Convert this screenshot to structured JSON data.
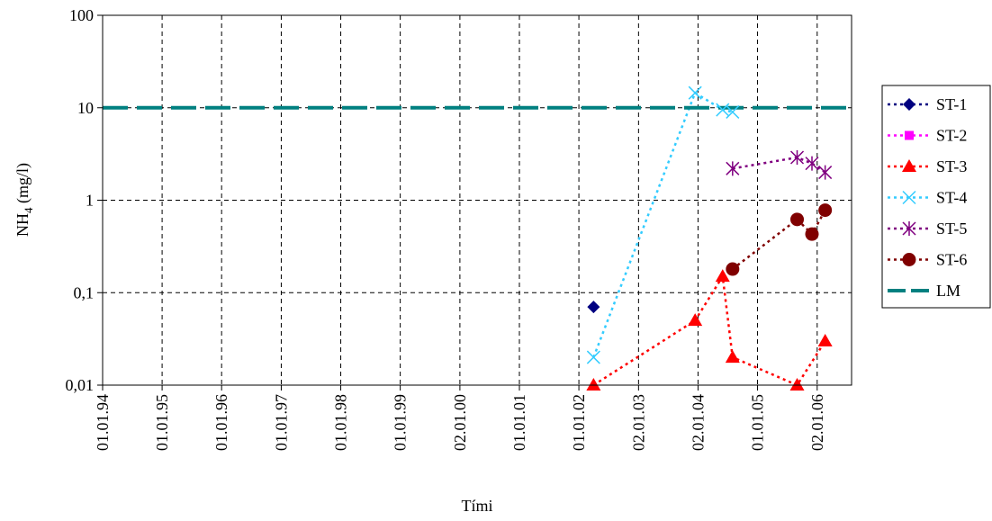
{
  "chart_data": {
    "type": "scatter",
    "y_scale": "log",
    "ylim": [
      0.01,
      100
    ],
    "grid": true,
    "legend_position": "right",
    "xlabel": "Tími",
    "ylabel_main": "NH",
    "ylabel_sub": "4",
    "ylabel_rest": " (mg/l)",
    "y_ticks": [
      {
        "value": 100,
        "label": "100"
      },
      {
        "value": 10,
        "label": "10"
      },
      {
        "value": 1,
        "label": "1"
      },
      {
        "value": 0.1,
        "label": "0,1"
      },
      {
        "value": 0.01,
        "label": "0,01"
      }
    ],
    "x_range": [
      "1994-01-01",
      "2006-08-01"
    ],
    "x_ticks": [
      {
        "date": "1994-01-01",
        "label": "01.01.94"
      },
      {
        "date": "1995-01-01",
        "label": "01.01.95"
      },
      {
        "date": "1996-01-01",
        "label": "01.01.96"
      },
      {
        "date": "1997-01-01",
        "label": "01.01.97"
      },
      {
        "date": "1998-01-01",
        "label": "01.01.98"
      },
      {
        "date": "1999-01-01",
        "label": "01.01.99"
      },
      {
        "date": "2000-01-02",
        "label": "02.01.00"
      },
      {
        "date": "2001-01-01",
        "label": "01.01.01"
      },
      {
        "date": "2002-01-01",
        "label": "01.01.02"
      },
      {
        "date": "2003-01-02",
        "label": "02.01.03"
      },
      {
        "date": "2004-01-02",
        "label": "02.01.04"
      },
      {
        "date": "2005-01-01",
        "label": "01.01.05"
      },
      {
        "date": "2006-01-02",
        "label": "02.01.06"
      }
    ],
    "series": [
      {
        "name": "ST-1",
        "color": "#000080",
        "marker": "diamond",
        "points": [
          {
            "x": "2002-04-01",
            "y": 0.07
          }
        ]
      },
      {
        "name": "ST-2",
        "color": "#ff00ff",
        "marker": "square",
        "points": []
      },
      {
        "name": "ST-3",
        "color": "#ff0000",
        "marker": "triangle",
        "points": [
          {
            "x": "2002-04-01",
            "y": 0.01
          },
          {
            "x": "2003-12-15",
            "y": 0.05
          },
          {
            "x": "2004-06-01",
            "y": 0.15
          },
          {
            "x": "2004-08-01",
            "y": 0.02
          },
          {
            "x": "2005-09-01",
            "y": 0.01
          },
          {
            "x": "2006-02-20",
            "y": 0.03
          }
        ]
      },
      {
        "name": "ST-4",
        "color": "#33ccff",
        "marker": "x",
        "points": [
          {
            "x": "2002-04-01",
            "y": 0.02
          },
          {
            "x": "2003-12-15",
            "y": 14.5
          },
          {
            "x": "2004-06-01",
            "y": 9.5
          },
          {
            "x": "2004-08-01",
            "y": 9
          }
        ]
      },
      {
        "name": "ST-5",
        "color": "#800080",
        "marker": "star",
        "points": [
          {
            "x": "2004-08-01",
            "y": 2.2
          },
          {
            "x": "2005-09-01",
            "y": 2.9
          },
          {
            "x": "2005-12-01",
            "y": 2.5
          },
          {
            "x": "2006-02-20",
            "y": 2
          }
        ]
      },
      {
        "name": "ST-6",
        "color": "#800000",
        "marker": "circle",
        "points": [
          {
            "x": "2004-08-01",
            "y": 0.18
          },
          {
            "x": "2005-09-01",
            "y": 0.62
          },
          {
            "x": "2005-12-01",
            "y": 0.43
          },
          {
            "x": "2006-02-20",
            "y": 0.78
          }
        ]
      },
      {
        "name": "LM",
        "color": "#008080",
        "marker": "none",
        "line": "dash",
        "constant_y": 10
      }
    ]
  }
}
